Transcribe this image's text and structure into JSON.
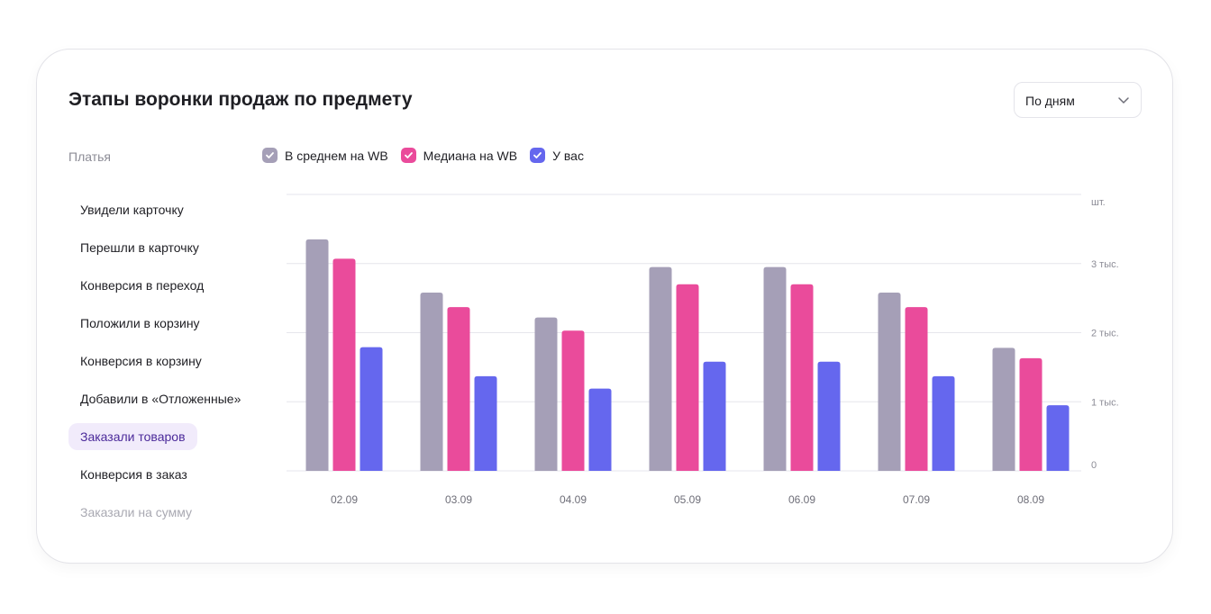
{
  "header": {
    "title": "Этапы воронки продаж по предмету",
    "period_dropdown": {
      "selected": "По дням"
    }
  },
  "subject": "Платья",
  "legend": [
    {
      "label": "В среднем на WB",
      "color": "#a59fb7"
    },
    {
      "label": "Медиана на WB",
      "color": "#ea4b9b"
    },
    {
      "label": "У вас",
      "color": "#6567ee"
    }
  ],
  "metrics": [
    {
      "label": "Увидели карточку"
    },
    {
      "label": "Перешли в карточку"
    },
    {
      "label": "Конверсия в переход"
    },
    {
      "label": "Положили в корзину"
    },
    {
      "label": "Конверсия в корзину"
    },
    {
      "label": "Добавили в «Отложенные»"
    },
    {
      "label": "Заказали товаров",
      "active": true
    },
    {
      "label": "Конверсия в заказ"
    },
    {
      "label": "Заказали на сумму",
      "faded": true
    }
  ],
  "chart_data": {
    "type": "bar",
    "categories": [
      "02.09",
      "03.09",
      "04.09",
      "05.09",
      "06.09",
      "07.09",
      "08.09"
    ],
    "series": [
      {
        "name": "В среднем на WB",
        "color": "#a59fb7",
        "values": [
          3350,
          2580,
          2220,
          2950,
          2950,
          2580,
          1780
        ]
      },
      {
        "name": "Медиана на WB",
        "color": "#ea4b9b",
        "values": [
          3070,
          2370,
          2030,
          2700,
          2700,
          2370,
          1630
        ]
      },
      {
        "name": "У вас",
        "color": "#6567ee",
        "values": [
          1790,
          1370,
          1190,
          1580,
          1580,
          1370,
          950
        ]
      }
    ],
    "yaxis": {
      "unit_label": "шт.",
      "ticks": [
        {
          "value": 0,
          "label": "0"
        },
        {
          "value": 1000,
          "label": "1 тыс."
        },
        {
          "value": 2000,
          "label": "2 тыс."
        },
        {
          "value": 3000,
          "label": "3 тыс."
        }
      ],
      "ylim": [
        0,
        4000
      ],
      "position": "right"
    },
    "grid": true
  }
}
